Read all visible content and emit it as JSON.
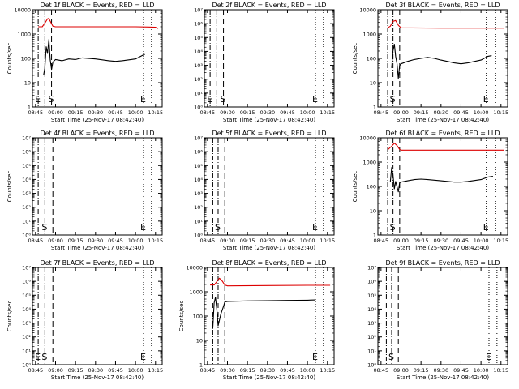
{
  "colors": {
    "events": "#000000",
    "lld": "#dd0000",
    "background": "#ffffff",
    "frame": "#000000"
  },
  "chart_data": [
    {
      "type": "line",
      "title": "Det 1f BLACK = Events, RED = LLD",
      "xlabel": "Start Time (25-Nov-17 08:42:40)",
      "ylabel": "Counts/sec",
      "log_y": true,
      "ylim": [
        1,
        10000
      ],
      "y_ticks": [
        "1",
        "10",
        "100",
        "1000",
        "10000"
      ],
      "x_ticks": [
        "08:45",
        "09:00",
        "09:15",
        "09:30",
        "09:45",
        "10:00",
        "10:15"
      ],
      "xlim": [
        "08:42:40",
        "10:20:00"
      ],
      "markers": [
        {
          "time": "08:47",
          "style": "dashdot",
          "label": "E"
        },
        {
          "time": "08:52",
          "style": "dashdot",
          "label": ""
        },
        {
          "time": "08:57",
          "style": "dashed",
          "label": "S"
        },
        {
          "time": "10:06",
          "style": "dotted",
          "label": "E"
        },
        {
          "time": "10:12",
          "style": "dotted",
          "label": ""
        }
      ],
      "series": [
        {
          "name": "LLD",
          "color": "#dd0000",
          "points": [
            [
              "08:47",
              2000
            ],
            [
              "08:50",
              2000
            ],
            [
              "08:52",
              2800
            ],
            [
              "08:54",
              4200
            ],
            [
              "08:55",
              4400
            ],
            [
              "08:56",
              3400
            ],
            [
              "08:58",
              2100
            ],
            [
              "09:00",
              2000
            ],
            [
              "09:30",
              2000
            ],
            [
              "10:00",
              2000
            ],
            [
              "10:10",
              1950
            ],
            [
              "10:15",
              1900
            ],
            [
              "10:17",
              1700
            ]
          ]
        },
        {
          "name": "Events",
          "color": "#000000",
          "points": [
            [
              "08:51",
              20
            ],
            [
              "08:52",
              40
            ],
            [
              "08:53",
              300
            ],
            [
              "08:54",
              160
            ],
            [
              "08:55",
              600
            ],
            [
              "08:56",
              90
            ],
            [
              "08:57",
              35
            ],
            [
              "08:58",
              70
            ],
            [
              "09:00",
              90
            ],
            [
              "09:05",
              80
            ],
            [
              "09:10",
              95
            ],
            [
              "09:15",
              90
            ],
            [
              "09:20",
              105
            ],
            [
              "09:30",
              95
            ],
            [
              "09:40",
              80
            ],
            [
              "09:45",
              75
            ],
            [
              "09:50",
              80
            ],
            [
              "10:00",
              95
            ],
            [
              "10:06",
              140
            ],
            [
              "10:07",
              145
            ]
          ]
        }
      ]
    },
    {
      "type": "line",
      "title": "Det 2f BLACK = Events, RED = LLD",
      "xlabel": "Start Time (25-Nov-17 08:42:40)",
      "ylabel": "",
      "log_y": true,
      "ylim": [
        1,
        10000000
      ],
      "y_ticks": [
        "10⁰",
        "10¹",
        "10²",
        "10³",
        "10⁴",
        "10⁵",
        "10⁶",
        "10⁷"
      ],
      "x_ticks": [
        "08:45",
        "09:00",
        "09:15",
        "09:30",
        "09:45",
        "10:00",
        "10:15"
      ],
      "xlim": [
        "08:42:40",
        "10:20:00"
      ],
      "markers": [
        {
          "time": "08:47",
          "style": "dashdot",
          "label": "E"
        },
        {
          "time": "08:52",
          "style": "dashdot",
          "label": ""
        },
        {
          "time": "08:57",
          "style": "dashed",
          "label": "S"
        },
        {
          "time": "10:06",
          "style": "dotted",
          "label": "E"
        },
        {
          "time": "10:12",
          "style": "dotted",
          "label": ""
        }
      ],
      "series": []
    },
    {
      "type": "line",
      "title": "Det 3f BLACK = Events, RED = LLD",
      "xlabel": "Start Time (25-Nov-17 08:42:40)",
      "ylabel": "Counts/sec",
      "log_y": true,
      "ylim": [
        1,
        10000
      ],
      "y_ticks": [
        "1",
        "10",
        "100",
        "1000",
        "10000"
      ],
      "x_ticks": [
        "08:45",
        "09:00",
        "09:15",
        "09:30",
        "09:45",
        "10:00",
        "10:15"
      ],
      "xlim": [
        "08:42:40",
        "10:20:00"
      ],
      "markers": [
        {
          "time": "08:50",
          "style": "dashdot",
          "label": ""
        },
        {
          "time": "08:54",
          "style": "dashdot",
          "label": "S"
        },
        {
          "time": "08:59",
          "style": "dashed",
          "label": ""
        },
        {
          "time": "10:04",
          "style": "dotted",
          "label": "E"
        },
        {
          "time": "10:11",
          "style": "dotted",
          "label": ""
        }
      ],
      "series": [
        {
          "name": "LLD",
          "color": "#dd0000",
          "points": [
            [
              "08:50",
              1800
            ],
            [
              "08:52",
              2100
            ],
            [
              "08:54",
              3300
            ],
            [
              "08:56",
              3600
            ],
            [
              "08:58",
              2300
            ],
            [
              "09:00",
              1800
            ],
            [
              "09:30",
              1750
            ],
            [
              "10:00",
              1750
            ],
            [
              "10:17",
              1750
            ]
          ]
        },
        {
          "name": "Events",
          "color": "#000000",
          "points": [
            [
              "08:53",
              40
            ],
            [
              "08:54",
              200
            ],
            [
              "08:55",
              380
            ],
            [
              "08:56",
              120
            ],
            [
              "08:57",
              60
            ],
            [
              "08:58",
              15
            ],
            [
              "08:59",
              50
            ],
            [
              "09:00",
              60
            ],
            [
              "09:05",
              75
            ],
            [
              "09:10",
              90
            ],
            [
              "09:15",
              100
            ],
            [
              "09:20",
              110
            ],
            [
              "09:25",
              100
            ],
            [
              "09:30",
              85
            ],
            [
              "09:40",
              65
            ],
            [
              "09:45",
              60
            ],
            [
              "09:50",
              65
            ],
            [
              "10:00",
              85
            ],
            [
              "10:05",
              120
            ],
            [
              "10:08",
              130
            ]
          ]
        }
      ]
    },
    {
      "type": "line",
      "title": "Det 4f BLACK = Events, RED = LLD",
      "xlabel": "Start Time (25-Nov-17 08:42:40)",
      "ylabel": "Counts/sec",
      "log_y": true,
      "ylim": [
        1,
        10000000
      ],
      "y_ticks": [
        "10⁰",
        "10¹",
        "10²",
        "10³",
        "10⁴",
        "10⁵",
        "10⁶",
        "10⁷"
      ],
      "x_ticks": [
        "08:45",
        "09:00",
        "09:15",
        "09:30",
        "09:45",
        "10:00",
        "10:15"
      ],
      "xlim": [
        "08:42:40",
        "10:20:00"
      ],
      "markers": [
        {
          "time": "08:47",
          "style": "dashdot",
          "label": ""
        },
        {
          "time": "08:52",
          "style": "dashdot",
          "label": "S"
        },
        {
          "time": "08:58",
          "style": "dashed",
          "label": ""
        },
        {
          "time": "10:06",
          "style": "dotted",
          "label": "E"
        },
        {
          "time": "10:12",
          "style": "dotted",
          "label": ""
        }
      ],
      "series": []
    },
    {
      "type": "line",
      "title": "Det 5f BLACK = Events, RED = LLD",
      "xlabel": "Start Time (25-Nov-17 08:42:40)",
      "ylabel": "",
      "log_y": true,
      "ylim": [
        1,
        10000000
      ],
      "y_ticks": [
        "10⁰",
        "10¹",
        "10²",
        "10³",
        "10⁴",
        "10⁵",
        "10⁶",
        "10⁷"
      ],
      "x_ticks": [
        "08:45",
        "09:00",
        "09:15",
        "09:30",
        "09:45",
        "10:00",
        "10:15"
      ],
      "xlim": [
        "08:42:40",
        "10:20:00"
      ],
      "markers": [
        {
          "time": "08:49",
          "style": "dashdot",
          "label": ""
        },
        {
          "time": "08:53",
          "style": "dashdot",
          "label": "S"
        },
        {
          "time": "08:58",
          "style": "dashed",
          "label": ""
        },
        {
          "time": "10:06",
          "style": "dotted",
          "label": "E"
        },
        {
          "time": "10:12",
          "style": "dotted",
          "label": ""
        }
      ],
      "series": []
    },
    {
      "type": "line",
      "title": "Det 6f BLACK = Events, RED = LLD",
      "xlabel": "Start Time (25-Nov-17 08:42:40)",
      "ylabel": "Counts/sec",
      "log_y": true,
      "ylim": [
        1,
        10000
      ],
      "y_ticks": [
        "1",
        "10",
        "100",
        "1000",
        "10000"
      ],
      "x_ticks": [
        "08:45",
        "09:00",
        "09:15",
        "09:30",
        "09:45",
        "10:00",
        "10:15"
      ],
      "xlim": [
        "08:42:40",
        "10:20:00"
      ],
      "markers": [
        {
          "time": "08:50",
          "style": "dashdot",
          "label": ""
        },
        {
          "time": "08:54",
          "style": "dashdot",
          "label": "S"
        },
        {
          "time": "08:59",
          "style": "dashed",
          "label": ""
        },
        {
          "time": "10:04",
          "style": "dotted",
          "label": "E"
        },
        {
          "time": "10:11",
          "style": "dotted",
          "label": ""
        }
      ],
      "series": [
        {
          "name": "LLD",
          "color": "#dd0000",
          "points": [
            [
              "08:50",
              3200
            ],
            [
              "08:53",
              4500
            ],
            [
              "08:55",
              6000
            ],
            [
              "08:57",
              4800
            ],
            [
              "08:59",
              3300
            ],
            [
              "09:00",
              3100
            ],
            [
              "09:30",
              3100
            ],
            [
              "10:00",
              3100
            ],
            [
              "10:17",
              3100
            ]
          ]
        },
        {
          "name": "Events",
          "color": "#000000",
          "points": [
            [
              "08:52",
              150
            ],
            [
              "08:53",
              600
            ],
            [
              "08:54",
              300
            ],
            [
              "08:55",
              80
            ],
            [
              "08:56",
              160
            ],
            [
              "08:58",
              60
            ],
            [
              "08:59",
              140
            ],
            [
              "09:00",
              150
            ],
            [
              "09:05",
              170
            ],
            [
              "09:10",
              190
            ],
            [
              "09:15",
              200
            ],
            [
              "09:20",
              190
            ],
            [
              "09:30",
              170
            ],
            [
              "09:40",
              150
            ],
            [
              "09:45",
              150
            ],
            [
              "09:50",
              160
            ],
            [
              "10:00",
              190
            ],
            [
              "10:05",
              240
            ],
            [
              "10:09",
              260
            ]
          ]
        }
      ]
    },
    {
      "type": "line",
      "title": "Det 7f BLACK = Events, RED = LLD",
      "xlabel": "Start Time (25-Nov-17 08:42:40)",
      "ylabel": "Counts/sec",
      "log_y": true,
      "ylim": [
        1,
        10000000
      ],
      "y_ticks": [
        "10⁰",
        "10¹",
        "10²",
        "10³",
        "10⁴",
        "10⁵",
        "10⁶",
        "10⁷"
      ],
      "x_ticks": [
        "08:45",
        "09:00",
        "09:15",
        "09:30",
        "09:45",
        "10:00",
        "10:15"
      ],
      "xlim": [
        "08:42:40",
        "10:20:00"
      ],
      "markers": [
        {
          "time": "08:47",
          "style": "dashdot",
          "label": "E"
        },
        {
          "time": "08:52",
          "style": "dashdot",
          "label": "S"
        },
        {
          "time": "08:58",
          "style": "dashed",
          "label": ""
        },
        {
          "time": "10:06",
          "style": "dotted",
          "label": "E"
        },
        {
          "time": "10:12",
          "style": "dotted",
          "label": ""
        }
      ],
      "series": []
    },
    {
      "type": "line",
      "title": "Det 8f BLACK = Events, RED = LLD",
      "xlabel": "Start Time (25-Nov-17 08:42:40)",
      "ylabel": "Counts/sec",
      "log_y": true,
      "ylim": [
        1,
        10000
      ],
      "y_ticks": [
        "1",
        "10",
        "100",
        "1000",
        "10000"
      ],
      "x_ticks": [
        "08:45",
        "09:00",
        "09:15",
        "09:30",
        "09:45",
        "10:00",
        "10:15"
      ],
      "xlim": [
        "08:42:40",
        "10:20:00"
      ],
      "markers": [
        {
          "time": "08:49",
          "style": "dashdot",
          "label": ""
        },
        {
          "time": "08:53",
          "style": "dashdot",
          "label": ""
        },
        {
          "time": "08:58",
          "style": "dashed",
          "label": ""
        },
        {
          "time": "10:06",
          "style": "dotted",
          "label": "E"
        },
        {
          "time": "10:12",
          "style": "dotted",
          "label": ""
        }
      ],
      "series": [
        {
          "name": "LLD",
          "color": "#dd0000",
          "points": [
            [
              "08:47",
              1900
            ],
            [
              "08:50",
              1900
            ],
            [
              "08:52",
              2600
            ],
            [
              "08:54",
              3600
            ],
            [
              "08:56",
              2800
            ],
            [
              "08:58",
              1900
            ],
            [
              "09:00",
              1750
            ],
            [
              "09:30",
              1800
            ],
            [
              "10:00",
              1850
            ],
            [
              "10:17",
              1850
            ]
          ]
        },
        {
          "name": "Events",
          "color": "#000000",
          "points": [
            [
              "08:49",
              30
            ],
            [
              "08:50",
              350
            ],
            [
              "08:51",
              600
            ],
            [
              "08:52",
              200
            ],
            [
              "08:53",
              40
            ],
            [
              "08:55",
              120
            ],
            [
              "08:57",
              250
            ],
            [
              "08:58",
              380
            ],
            [
              "09:00",
              400
            ],
            [
              "09:15",
              420
            ],
            [
              "09:30",
              430
            ],
            [
              "09:45",
              440
            ],
            [
              "10:00",
              450
            ],
            [
              "10:06",
              460
            ]
          ]
        }
      ]
    },
    {
      "type": "line",
      "title": "Det 9f BLACK = Events, RED = LLD",
      "xlabel": "Start Time (25-Nov-17 08:42:40)",
      "ylabel": "",
      "log_y": true,
      "ylim": [
        1,
        10000000
      ],
      "y_ticks": [
        "10⁰",
        "10¹",
        "10²",
        "10³",
        "10⁴",
        "10⁵",
        "10⁶",
        "10⁷"
      ],
      "x_ticks": [
        "08:45",
        "09:00",
        "09:15",
        "09:30",
        "09:45",
        "10:00",
        "10:15"
      ],
      "xlim": [
        "08:42:40",
        "10:20:00"
      ],
      "markers": [
        {
          "time": "08:49",
          "style": "dashdot",
          "label": ""
        },
        {
          "time": "08:53",
          "style": "dashdot",
          "label": "S"
        },
        {
          "time": "08:58",
          "style": "dashed",
          "label": ""
        },
        {
          "time": "10:06",
          "style": "dotted",
          "label": "E"
        },
        {
          "time": "10:12",
          "style": "dotted",
          "label": ""
        }
      ],
      "series": []
    }
  ]
}
